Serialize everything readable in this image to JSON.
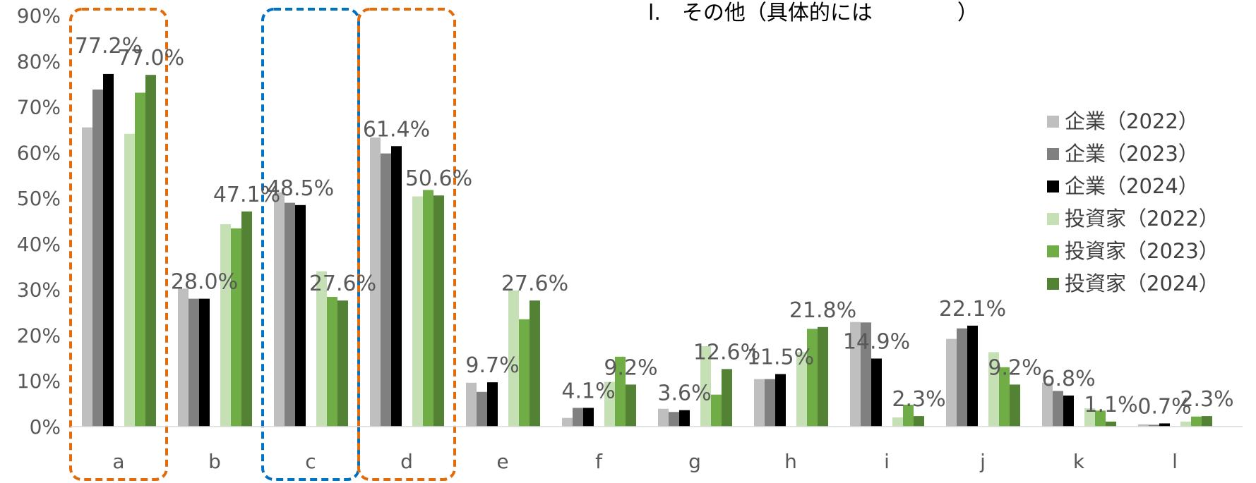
{
  "chart_data": {
    "type": "bar",
    "categories": [
      "a",
      "b",
      "c",
      "d",
      "e",
      "f",
      "g",
      "h",
      "i",
      "j",
      "k",
      "l"
    ],
    "ylim": [
      0,
      90
    ],
    "yticks": [
      "0%",
      "10%",
      "20%",
      "30%",
      "40%",
      "50%",
      "60%",
      "70%",
      "80%",
      "90%"
    ],
    "series": [
      {
        "name": "企業（2022）",
        "color": "#bfbfbf",
        "values": [
          65.5,
          30.2,
          51.3,
          63.3,
          9.6,
          1.9,
          3.9,
          10.4,
          22.9,
          19.2,
          9.6,
          0.5
        ]
      },
      {
        "name": "企業（2023）",
        "color": "#808080",
        "values": [
          73.8,
          28.0,
          49.0,
          59.8,
          7.6,
          4.1,
          3.2,
          10.4,
          22.8,
          21.5,
          7.8,
          0.4
        ]
      },
      {
        "name": "企業（2024）",
        "color": "#000000",
        "values": [
          77.2,
          28.0,
          48.5,
          61.4,
          9.7,
          4.1,
          3.6,
          11.5,
          14.9,
          22.1,
          6.8,
          0.7
        ]
      },
      {
        "name": "投資家（2022）",
        "color": "#c5e0b4",
        "values": [
          64.1,
          44.3,
          34.0,
          50.4,
          29.8,
          9.8,
          17.6,
          16.3,
          2.0,
          16.3,
          4.0,
          1.1
        ]
      },
      {
        "name": "投資家（2023）",
        "color": "#70ad47",
        "values": [
          73.1,
          43.4,
          28.4,
          51.8,
          23.5,
          15.3,
          7.0,
          21.4,
          4.8,
          13.0,
          3.5,
          2.2
        ]
      },
      {
        "name": "投資家（2024）",
        "color": "#548235",
        "values": [
          77.0,
          47.1,
          27.6,
          50.6,
          27.6,
          9.2,
          12.6,
          21.8,
          2.3,
          9.2,
          1.1,
          2.3
        ]
      }
    ],
    "data_labels": [
      {
        "category": "a",
        "series": 2,
        "text": "77.2%"
      },
      {
        "category": "a",
        "series": 5,
        "text": "77.0%"
      },
      {
        "category": "b",
        "series": 2,
        "text": "28.0%"
      },
      {
        "category": "b",
        "series": 5,
        "text": "47.1%"
      },
      {
        "category": "c",
        "series": 2,
        "text": "48.5%"
      },
      {
        "category": "c",
        "series": 5,
        "text": "27.6%"
      },
      {
        "category": "d",
        "series": 2,
        "text": "61.4%"
      },
      {
        "category": "d",
        "series": 5,
        "text": "50.6%"
      },
      {
        "category": "e",
        "series": 2,
        "text": "9.7%"
      },
      {
        "category": "e",
        "series": 5,
        "text": "27.6%"
      },
      {
        "category": "f",
        "series": 2,
        "text": "4.1%"
      },
      {
        "category": "f",
        "series": 5,
        "text": "9.2%"
      },
      {
        "category": "g",
        "series": 2,
        "text": "3.6%"
      },
      {
        "category": "g",
        "series": 5,
        "text": "12.6%"
      },
      {
        "category": "h",
        "series": 2,
        "text": "11.5%"
      },
      {
        "category": "h",
        "series": 5,
        "text": "21.8%"
      },
      {
        "category": "i",
        "series": 2,
        "text": "14.9%"
      },
      {
        "category": "i",
        "series": 5,
        "text": "2.3%"
      },
      {
        "category": "j",
        "series": 2,
        "text": "22.1%"
      },
      {
        "category": "j",
        "series": 5,
        "text": "9.2%"
      },
      {
        "category": "k",
        "series": 2,
        "text": "6.8%"
      },
      {
        "category": "k",
        "series": 5,
        "text": "1.1%"
      },
      {
        "category": "l",
        "series": 2,
        "text": "0.7%"
      },
      {
        "category": "l",
        "series": 5,
        "text": "2.3%"
      }
    ],
    "highlights": [
      {
        "category": "a",
        "color": "#e36c0a"
      },
      {
        "category": "c",
        "color": "#0070c0"
      },
      {
        "category": "d",
        "color": "#e36c0a"
      }
    ],
    "legend_position": "right",
    "grid": false,
    "annotation": "l.　その他（具体的には　　　　）"
  }
}
